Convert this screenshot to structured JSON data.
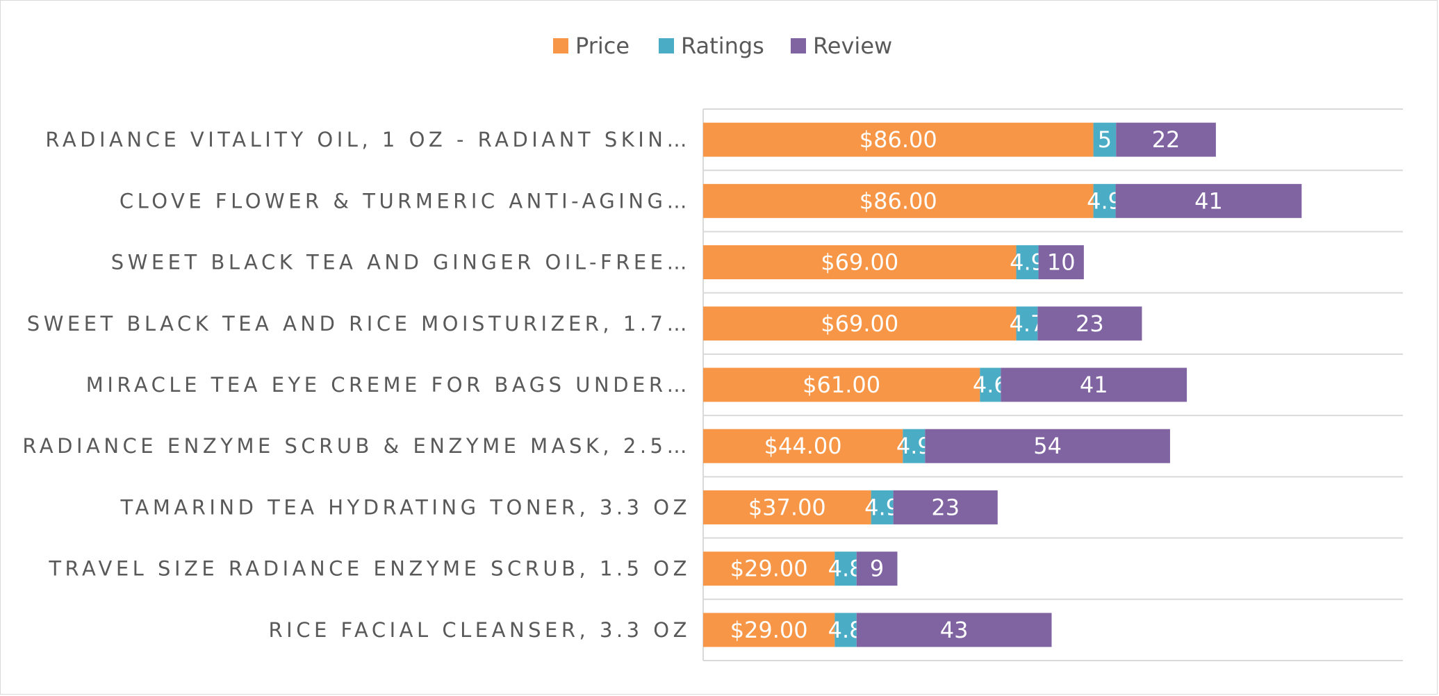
{
  "chart_data": {
    "type": "bar",
    "orientation": "horizontal",
    "stacked": true,
    "categories": [
      "RADIANCE VITALITY OIL, 1 OZ - RADIANT SKIN…",
      "CLOVE FLOWER & TURMERIC ANTI-AGING…",
      "SWEET BLACK TEA AND GINGER OIL-FREE…",
      "SWEET BLACK TEA AND RICE MOISTURIZER, 1.7…",
      "MIRACLE TEA EYE CREME FOR BAGS UNDER…",
      "RADIANCE ENZYME SCRUB & ENZYME MASK, 2.5…",
      "TAMARIND TEA HYDRATING TONER, 3.3 OZ",
      "TRAVEL SIZE RADIANCE ENZYME SCRUB, 1.5 OZ",
      "RICE FACIAL CLEANSER, 3.3 OZ"
    ],
    "series": [
      {
        "name": "Price",
        "color": "#F79646",
        "values": [
          86,
          86,
          69,
          69,
          61,
          44,
          37,
          29,
          29
        ],
        "labels": [
          "$86.00",
          "$86.00",
          "$69.00",
          "$69.00",
          "$61.00",
          "$44.00",
          "$37.00",
          "$29.00",
          "$29.00"
        ]
      },
      {
        "name": "Ratings",
        "color": "#4BACC6",
        "values": [
          5,
          4.9,
          4.9,
          4.7,
          4.6,
          4.9,
          4.9,
          4.8,
          4.8
        ],
        "labels": [
          "5",
          "4.9",
          "4.9",
          "4.7",
          "4.6",
          "4.9",
          "4.9",
          "4.8",
          "4.8"
        ]
      },
      {
        "name": "Review",
        "color": "#8064A2",
        "values": [
          22,
          41,
          10,
          23,
          41,
          54,
          23,
          9,
          43
        ],
        "labels": [
          "22",
          "41",
          "10",
          "23",
          "41",
          "54",
          "23",
          "9",
          "43"
        ]
      }
    ],
    "xlim": [
      0,
      140
    ],
    "grid": true,
    "legend": "top-center"
  }
}
